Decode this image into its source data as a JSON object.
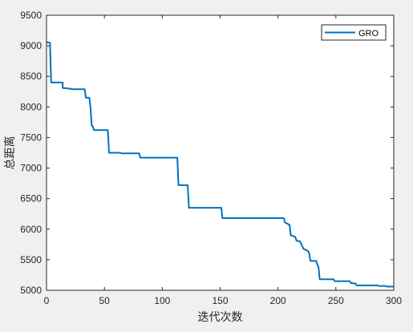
{
  "chart_data": {
    "type": "line",
    "title": "",
    "xlabel": "迭代次数",
    "ylabel": "总距离",
    "xlim": [
      0,
      300
    ],
    "ylim": [
      5000,
      9500
    ],
    "xticks": [
      0,
      50,
      100,
      150,
      200,
      250,
      300
    ],
    "yticks": [
      5000,
      5500,
      6000,
      6500,
      7000,
      7500,
      8000,
      8500,
      9000,
      9500
    ],
    "grid": false,
    "legend_position": "top-right",
    "series": [
      {
        "name": "GRO",
        "color": "#0072BD",
        "points": [
          [
            0,
            9060
          ],
          [
            3,
            9050
          ],
          [
            4,
            8400
          ],
          [
            14,
            8400
          ],
          [
            14,
            8310
          ],
          [
            20,
            8300
          ],
          [
            22,
            8290
          ],
          [
            33,
            8290
          ],
          [
            34,
            8150
          ],
          [
            37,
            8150
          ],
          [
            38,
            7990
          ],
          [
            39,
            7700
          ],
          [
            40,
            7680
          ],
          [
            41,
            7620
          ],
          [
            53,
            7620
          ],
          [
            54,
            7250
          ],
          [
            64,
            7250
          ],
          [
            65,
            7240
          ],
          [
            80,
            7240
          ],
          [
            81,
            7170
          ],
          [
            113,
            7170
          ],
          [
            114,
            6720
          ],
          [
            122,
            6720
          ],
          [
            123,
            6350
          ],
          [
            151,
            6350
          ],
          [
            152,
            6180
          ],
          [
            205,
            6180
          ],
          [
            206,
            6110
          ],
          [
            208,
            6090
          ],
          [
            210,
            6070
          ],
          [
            211,
            5900
          ],
          [
            213,
            5890
          ],
          [
            215,
            5870
          ],
          [
            216,
            5810
          ],
          [
            219,
            5800
          ],
          [
            220,
            5760
          ],
          [
            222,
            5680
          ],
          [
            224,
            5660
          ],
          [
            226,
            5640
          ],
          [
            227,
            5600
          ],
          [
            228,
            5480
          ],
          [
            233,
            5480
          ],
          [
            234,
            5420
          ],
          [
            235,
            5380
          ],
          [
            236,
            5180
          ],
          [
            248,
            5180
          ],
          [
            249,
            5150
          ],
          [
            262,
            5150
          ],
          [
            263,
            5120
          ],
          [
            267,
            5110
          ],
          [
            268,
            5080
          ],
          [
            286,
            5080
          ],
          [
            287,
            5070
          ],
          [
            293,
            5070
          ],
          [
            294,
            5060
          ],
          [
            300,
            5060
          ]
        ]
      }
    ]
  }
}
